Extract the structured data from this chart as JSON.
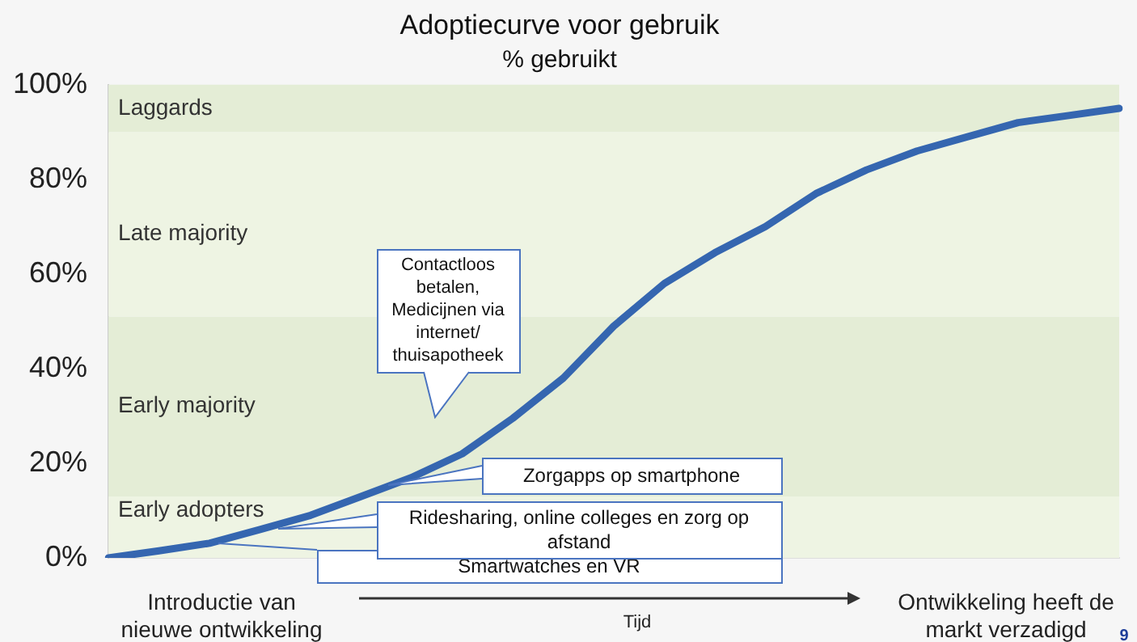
{
  "chart_data": {
    "type": "line",
    "title": "Adoptiecurve voor gebruik",
    "subtitle": "% gebruikt",
    "categories": [
      null,
      null,
      null,
      null,
      null,
      null,
      null,
      null,
      null,
      null,
      null,
      null,
      null,
      null,
      null,
      null,
      null,
      null,
      null,
      null,
      null
    ],
    "series": [
      {
        "color": "#3566b0",
        "values": [
          0,
          1.5,
          3.1,
          6,
          9,
          13,
          17,
          22,
          29.5,
          38,
          49,
          58,
          64.5,
          70,
          77,
          82,
          86,
          89,
          92,
          93.5,
          95
        ]
      }
    ],
    "ylim": [
      0,
      100
    ],
    "yticks": [
      {
        "value": 0,
        "label": "0%"
      },
      {
        "value": 20,
        "label": "20%"
      },
      {
        "value": 40,
        "label": "40%"
      },
      {
        "value": 60,
        "label": "60%"
      },
      {
        "value": 80,
        "label": "80%"
      },
      {
        "value": 100,
        "label": "100%"
      }
    ],
    "tick_labels": "y",
    "grid": false,
    "legend": false,
    "marker": "none",
    "line_style": "solid",
    "bands": [
      {
        "axis": "y",
        "from": 0,
        "to": 13,
        "label": "Early adopters",
        "color": "#eef4e3"
      },
      {
        "axis": "y",
        "from": 13,
        "to": 51,
        "label": "Early majority",
        "color": "#e4edd6"
      },
      {
        "axis": "y",
        "from": 51,
        "to": 90,
        "label": "Late majority",
        "color": "#eef4e3"
      },
      {
        "axis": "y",
        "from": 90,
        "to": 100,
        "label": "Laggards",
        "color": "#e4edd6"
      }
    ],
    "annotations": [
      "Contactloos betalen, Medicijnen via internet/ thuisapotheek",
      "Zorgapps op smartphone",
      "Ridesharing, online colleges en zorg op afstand",
      "Smartwatches en VR",
      "Introductie van nieuwe ontwikkeling",
      "Tijd",
      "Ontwikkeling heeft de markt verzadigd",
      "9"
    ]
  }
}
